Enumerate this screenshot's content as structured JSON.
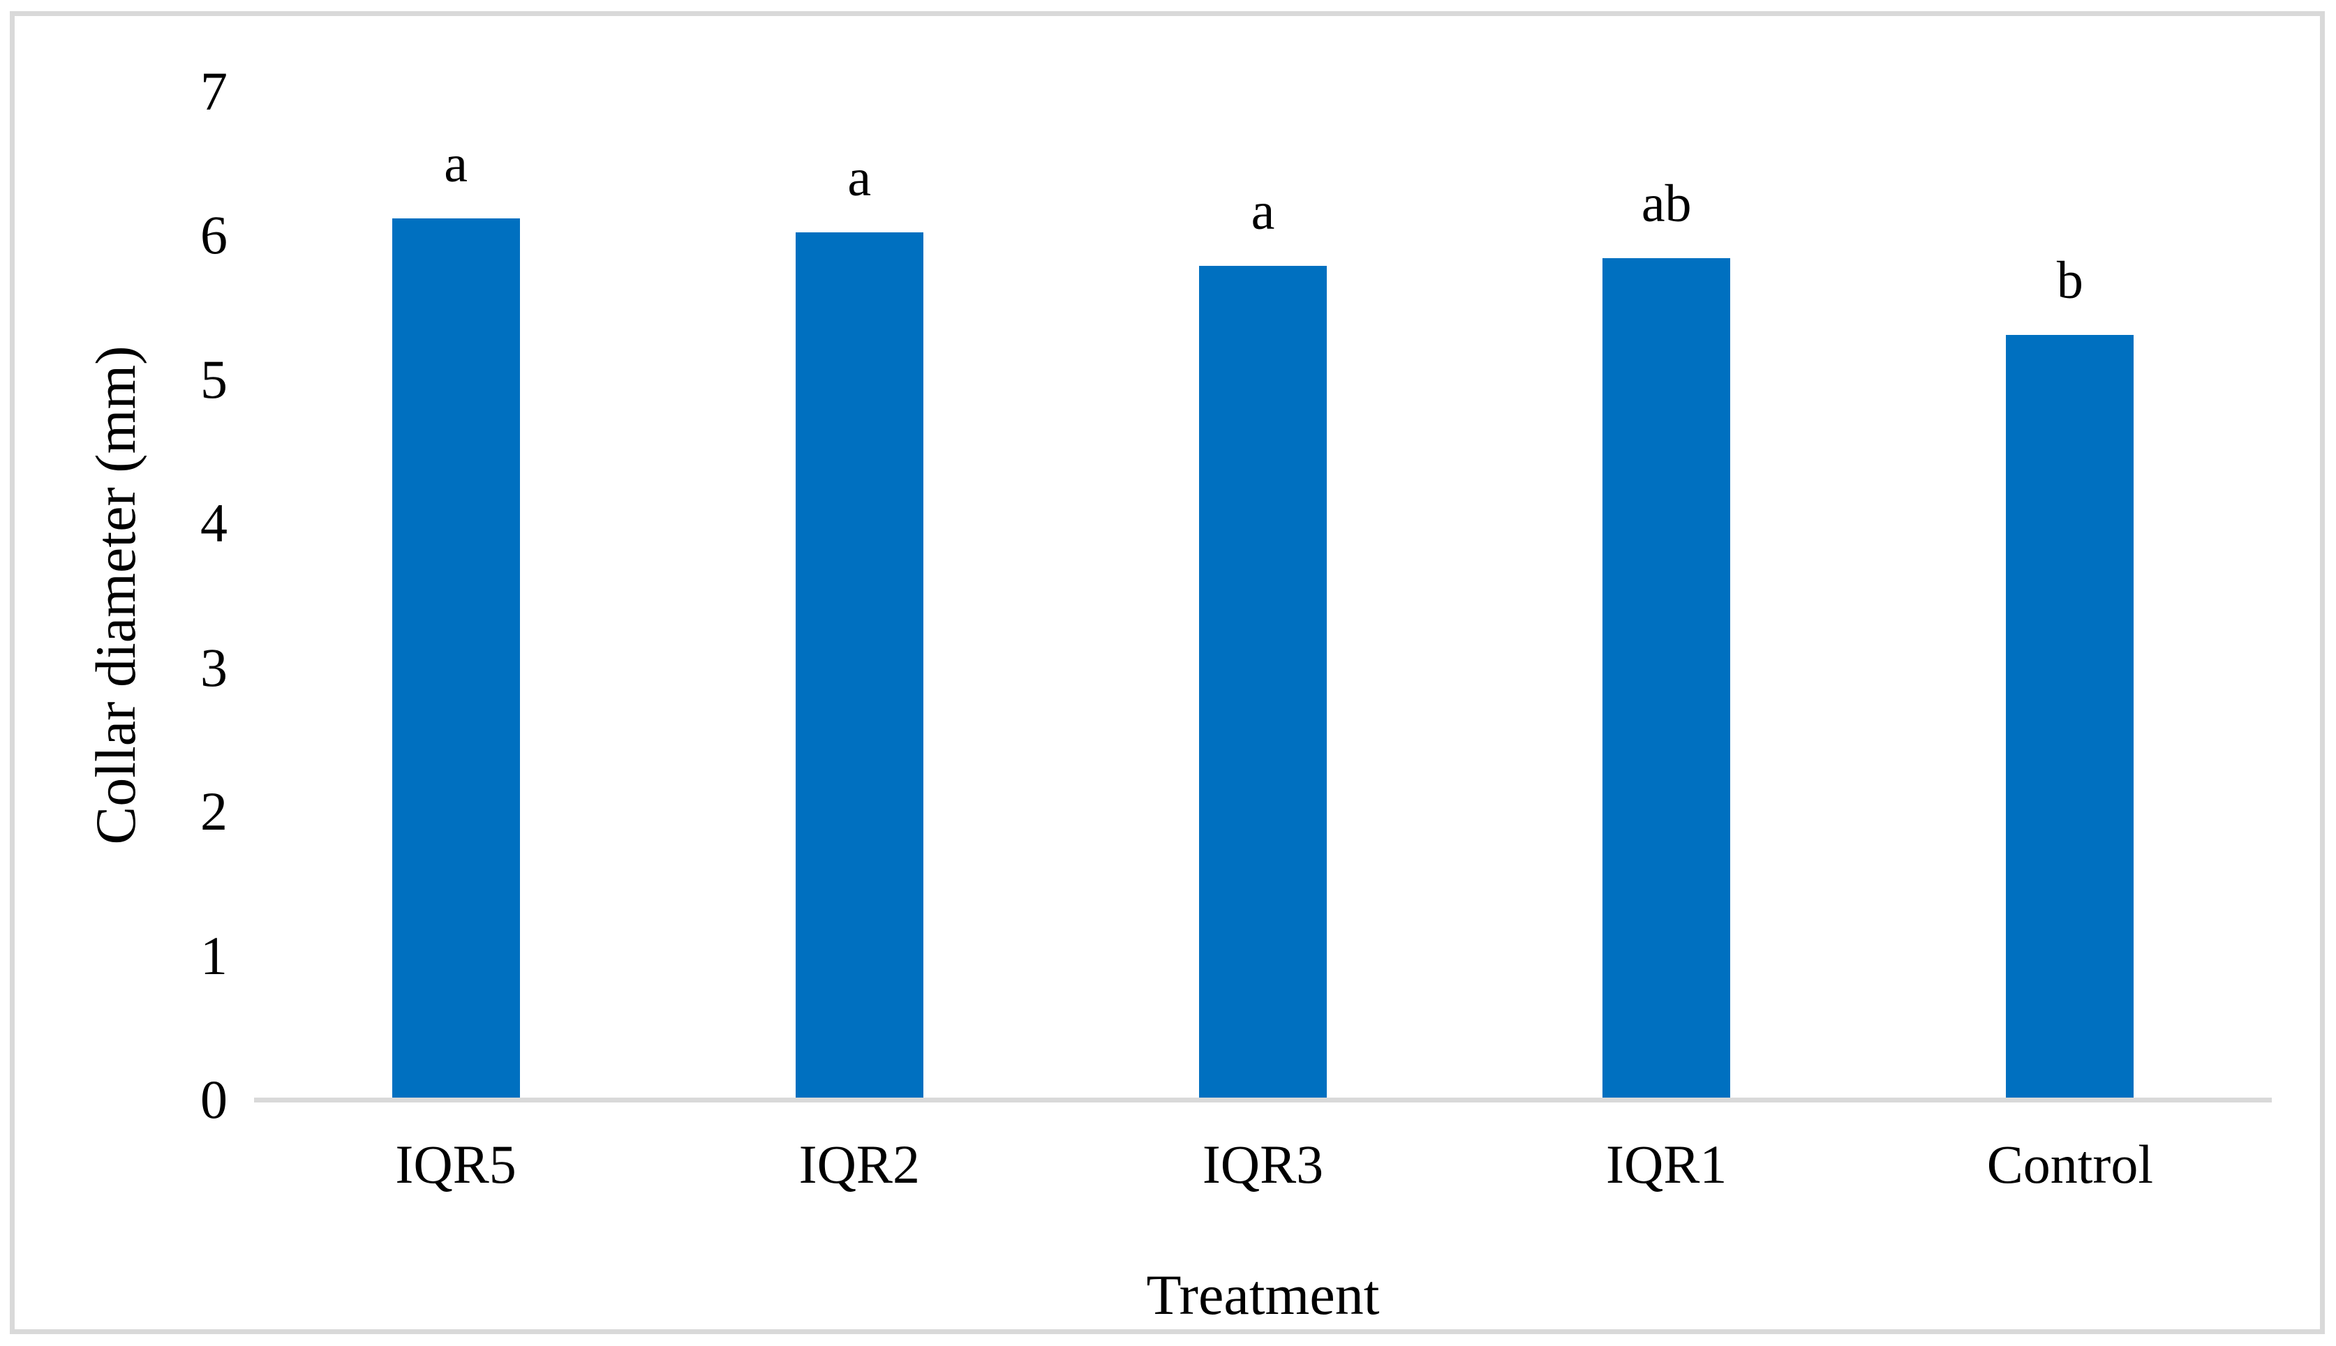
{
  "chart_data": {
    "type": "bar",
    "categories": [
      "IQR5",
      "IQR2",
      "IQR3",
      "IQR1",
      "Control"
    ],
    "values": [
      6.12,
      6.02,
      5.79,
      5.84,
      5.31
    ],
    "significance_letters": [
      "a",
      "a",
      "a",
      "ab",
      "b"
    ],
    "title": "",
    "xlabel": "Treatment",
    "ylabel": "Collar diameter (mm)",
    "ylim": [
      0,
      7
    ],
    "yticks": [
      0,
      1,
      2,
      3,
      4,
      5,
      6,
      7
    ],
    "grid": false,
    "legend_position": "none",
    "bar_color": "#0070C0",
    "axis_line_color": "#D9D9D9",
    "frame_border_color": "#D9D9D9",
    "text_color": "#000000",
    "background_color": "#FFFFFF"
  }
}
